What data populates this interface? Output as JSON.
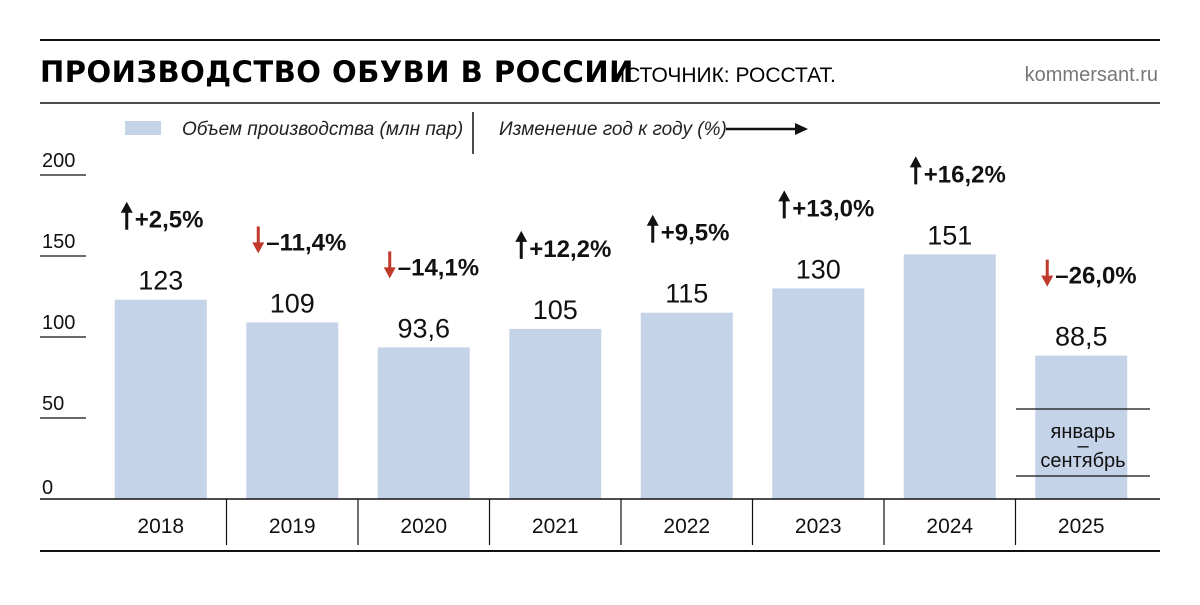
{
  "header": {
    "title": "ПРОИЗВОДСТВО ОБУВИ В РОССИИ",
    "source": "ИСТОЧНИК: РОССТАТ.",
    "site": "kommersant.ru"
  },
  "legend": {
    "volume_label": "Объем производства (млн пар)",
    "change_label": "Изменение год к году (%)"
  },
  "colors": {
    "bar": "#c5d3e9",
    "up_arrow": "#111111",
    "down_arrow": "#c0392b"
  },
  "chart_data": {
    "type": "bar",
    "categories": [
      "2018",
      "2019",
      "2020",
      "2021",
      "2022",
      "2023",
      "2024",
      "2025"
    ],
    "values": [
      123,
      109,
      93.6,
      105,
      115,
      130,
      151,
      88.5
    ],
    "value_labels": [
      "123",
      "109",
      "93,6",
      "105",
      "115",
      "130",
      "151",
      "88,5"
    ],
    "changes": [
      {
        "direction": "up",
        "label": "+2,5%"
      },
      {
        "direction": "down",
        "label": "–11,4%"
      },
      {
        "direction": "down",
        "label": "–14,1%"
      },
      {
        "direction": "up",
        "label": "+12,2%"
      },
      {
        "direction": "up",
        "label": "+9,5%"
      },
      {
        "direction": "up",
        "label": "+13,0%"
      },
      {
        "direction": "up",
        "label": "+16,2%"
      },
      {
        "direction": "down",
        "label": "–26,0%"
      }
    ],
    "yticks": [
      0,
      50,
      100,
      150,
      200
    ],
    "ylim": [
      0,
      200
    ],
    "note": {
      "category": "2025",
      "lines": [
        "январь",
        "–",
        "сентябрь"
      ]
    },
    "title": "ПРОИЗВОДСТВО ОБУВИ В РОССИИ",
    "xlabel": "",
    "ylabel": "",
    "grid": false,
    "legend_position": "top"
  }
}
